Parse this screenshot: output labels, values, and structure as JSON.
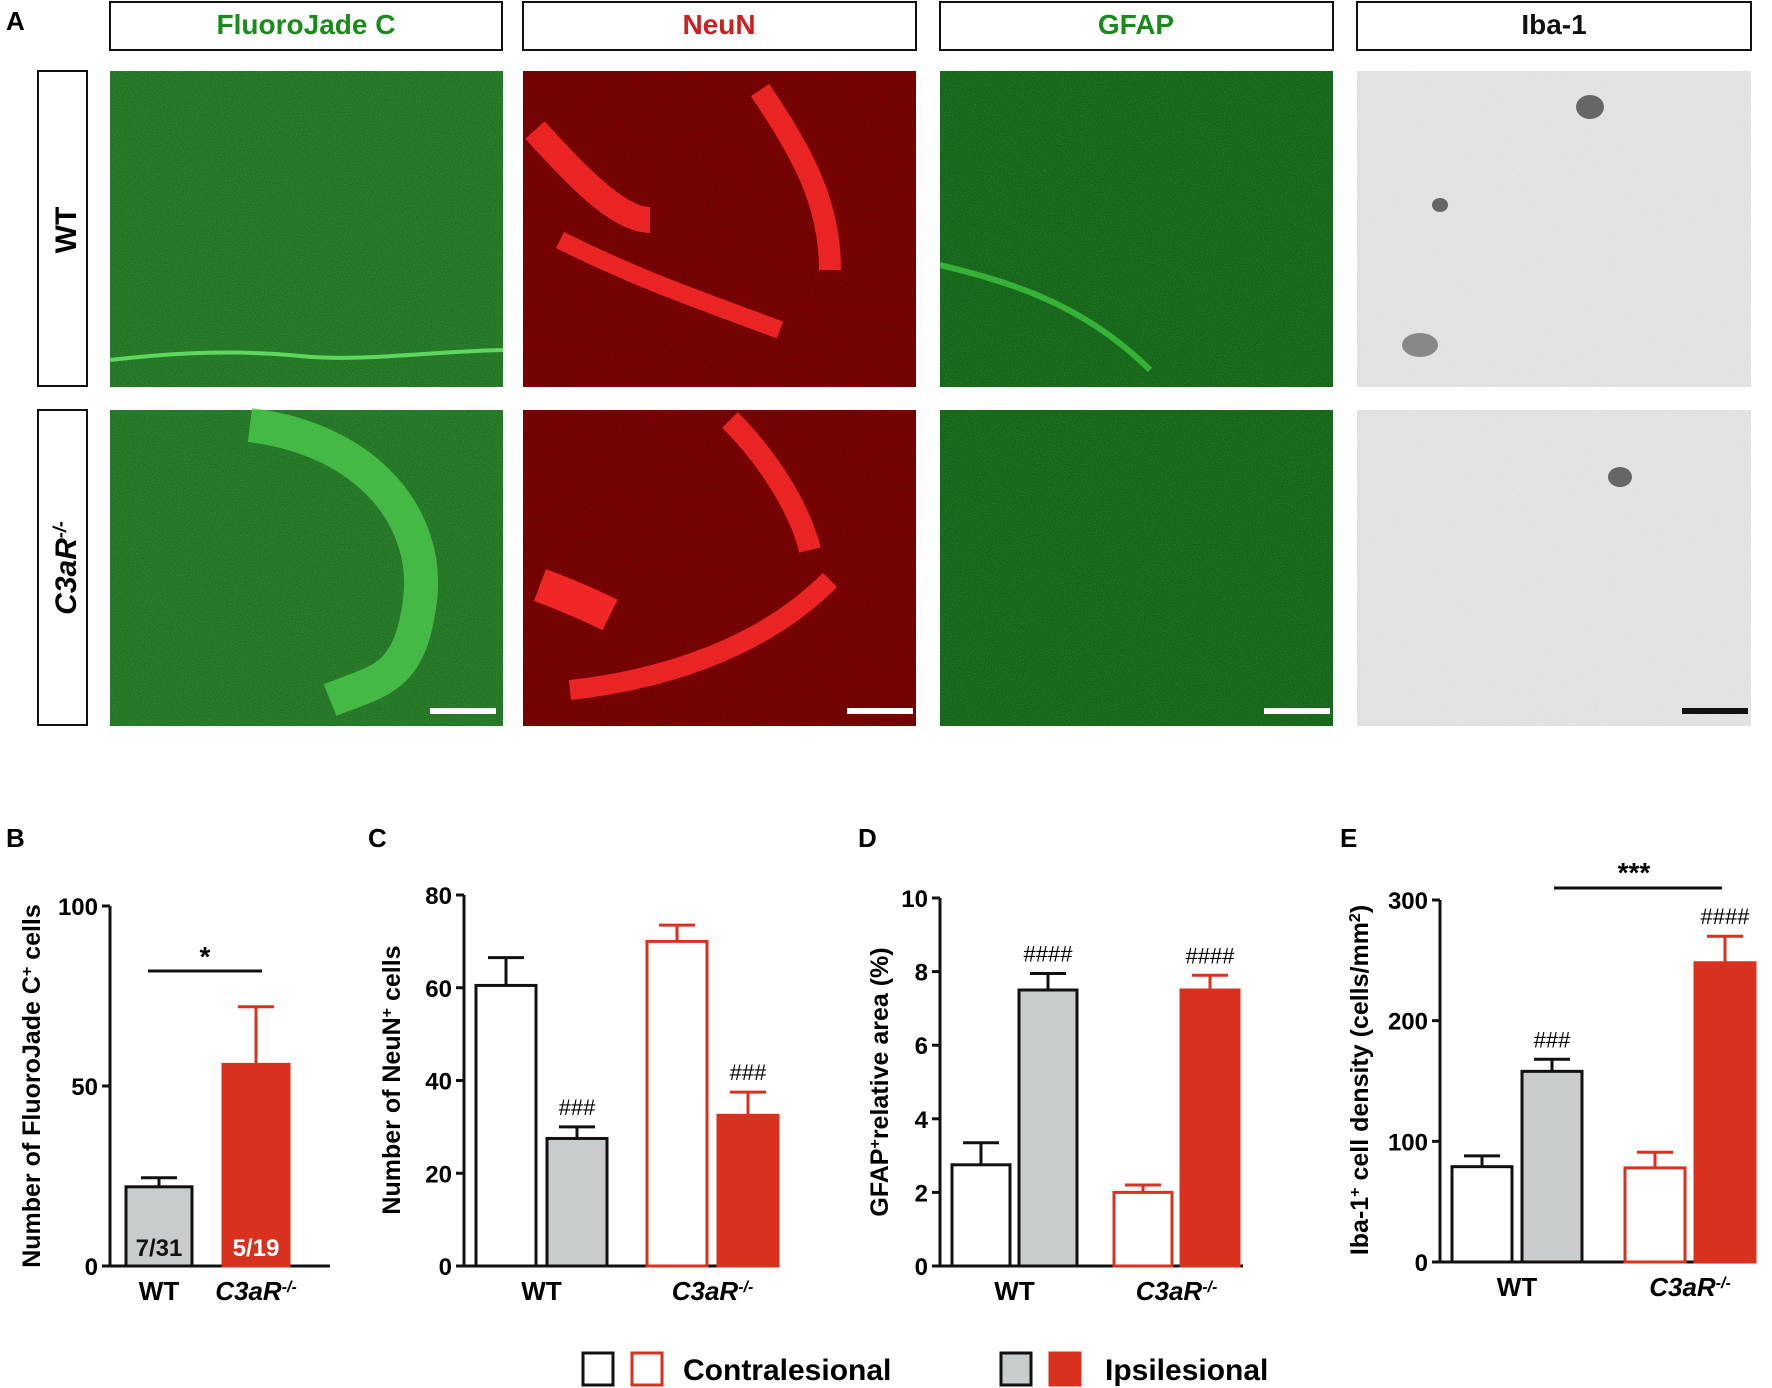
{
  "panel_A": {
    "label": "A",
    "columns": [
      {
        "title": "FluoroJade C",
        "color": "#1a8a1a"
      },
      {
        "title": "NeuN",
        "color": "#cc1f1f"
      },
      {
        "title": "GFAP",
        "color": "#1a8a1a"
      },
      {
        "title": "Iba-1",
        "color": "#111111"
      }
    ],
    "rows": [
      {
        "label": "WT",
        "sup": ""
      },
      {
        "label": "C3aR",
        "sup": "-/-"
      }
    ]
  },
  "legend": {
    "contralesional": "Contralesional",
    "ipsilesional": "Ipsilesional"
  },
  "colors": {
    "wt_fill": "#c8cccc",
    "ko_fill": "#d9311f",
    "stroke": "#111111",
    "green_tissue": "#1e7a22",
    "red_tissue": "#7a0606",
    "iba_tissue": "#e6e6e6"
  },
  "chart_data": [
    {
      "panel": "B",
      "type": "bar",
      "ylabel": "Number of FluoroJade C",
      "ylabel_sup": "+",
      "ylabel_suffix": " cells",
      "ylim": [
        0,
        100
      ],
      "yticks": [
        "0",
        "50",
        "100"
      ],
      "categories": [
        {
          "name": "WT",
          "sup": ""
        },
        {
          "name": "C3aR",
          "sup": "-/-"
        }
      ],
      "values": [
        22,
        56
      ],
      "errors": [
        2.5,
        16
      ],
      "bar_labels": [
        "7/31",
        "5/19"
      ],
      "significance": "*"
    },
    {
      "panel": "C",
      "type": "bar",
      "ylabel": "Number of NeuN",
      "ylabel_sup": "+",
      "ylabel_suffix": " cells",
      "ylim": [
        0,
        80
      ],
      "yticks": [
        "0",
        "20",
        "40",
        "60",
        "80"
      ],
      "categories": [
        {
          "name": "WT",
          "sup": ""
        },
        {
          "name": "C3aR",
          "sup": "-/-"
        }
      ],
      "series": [
        {
          "values": [
            60.5,
            70
          ],
          "errors": [
            6,
            3.5
          ],
          "annotations": [
            "",
            ""
          ]
        },
        {
          "values": [
            27.5,
            32.5
          ],
          "errors": [
            2.5,
            5
          ],
          "annotations": [
            "###",
            "###"
          ]
        }
      ]
    },
    {
      "panel": "D",
      "type": "bar",
      "ylabel": "GFAP",
      "ylabel_sup": "+",
      "ylabel_suffix": "relative area (%)",
      "ylim": [
        0,
        10
      ],
      "yticks": [
        "0",
        "2",
        "4",
        "6",
        "8",
        "10"
      ],
      "categories": [
        {
          "name": "WT",
          "sup": ""
        },
        {
          "name": "C3aR",
          "sup": "-/-"
        }
      ],
      "series": [
        {
          "values": [
            2.75,
            2.0
          ],
          "errors": [
            0.6,
            0.2
          ],
          "annotations": [
            "",
            ""
          ]
        },
        {
          "values": [
            7.5,
            7.5
          ],
          "errors": [
            0.45,
            0.4
          ],
          "annotations": [
            "####",
            "####"
          ]
        }
      ]
    },
    {
      "panel": "E",
      "type": "bar",
      "ylabel": "Iba-1",
      "ylabel_sup": "+",
      "ylabel_suffix": " cell density (cells/mm",
      "ylabel_sup2": "2",
      "ylabel_end": ")",
      "ylim": [
        0,
        300
      ],
      "yticks": [
        "0",
        "100",
        "200",
        "300"
      ],
      "categories": [
        {
          "name": "WT",
          "sup": ""
        },
        {
          "name": "C3aR",
          "sup": "-/-"
        }
      ],
      "series": [
        {
          "values": [
            79,
            78
          ],
          "errors": [
            9,
            13
          ],
          "annotations": [
            "",
            ""
          ]
        },
        {
          "values": [
            158,
            248
          ],
          "errors": [
            10,
            22
          ],
          "annotations": [
            "###",
            "####"
          ]
        }
      ],
      "significance": "***"
    }
  ]
}
